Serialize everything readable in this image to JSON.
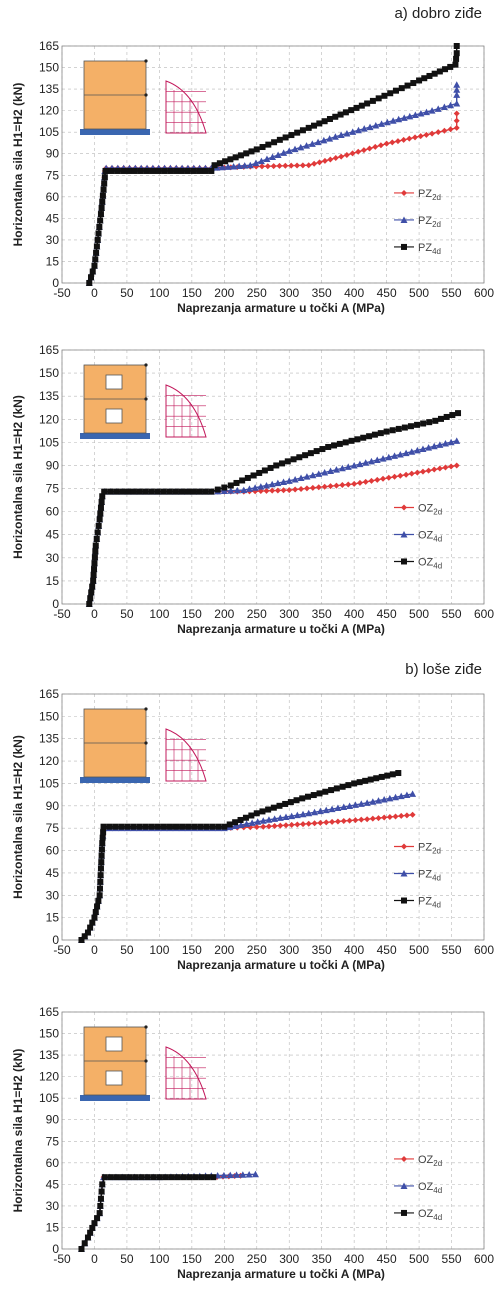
{
  "section_titles": [
    "a) dobro ziđe",
    "b) loše ziđe"
  ],
  "colors": {
    "red": "#e03a3a",
    "blue": "#3f4fa8",
    "black": "#111111",
    "grid": "#b8b8b8",
    "wall": "#f4b067",
    "base": "#3a66b0",
    "diagram": "#c2185b"
  },
  "chart_data": [
    {
      "type": "line",
      "title": "",
      "xlabel": "Naprezanja armature u točki A  (MPa)",
      "ylabel": "Horizontalna sila H1=H2 (kN)",
      "xlim": [
        -50,
        600
      ],
      "ylim": [
        0,
        165
      ],
      "xticks": [
        "-50",
        "0",
        "50",
        "100",
        "150",
        "200",
        "250",
        "300",
        "350",
        "400",
        "450",
        "500",
        "550",
        "600"
      ],
      "yticks": [
        "0",
        "15",
        "30",
        "45",
        "60",
        "75",
        "90",
        "105",
        "120",
        "135",
        "150",
        "165"
      ],
      "grid": true,
      "legend_position": "right",
      "inset": "wall",
      "legend_icon": "P",
      "series": [
        {
          "name": "PZ2d",
          "color": "red",
          "marker": "diamond",
          "points": [
            [
              -8,
              0
            ],
            [
              0,
              12
            ],
            [
              5,
              30
            ],
            [
              10,
              48
            ],
            [
              14,
              65
            ],
            [
              16,
              78
            ],
            [
              18,
              80
            ],
            [
              180,
              80
            ],
            [
              240,
              81
            ],
            [
              330,
              82
            ],
            [
              380,
              88
            ],
            [
              450,
              97
            ],
            [
              520,
              104
            ],
            [
              558,
              108
            ],
            [
              558,
              113
            ],
            [
              558,
              118
            ]
          ]
        },
        {
          "name": "PZ2d",
          "color": "blue",
          "marker": "triangle",
          "points": [
            [
              -8,
              0
            ],
            [
              0,
              12
            ],
            [
              5,
              30
            ],
            [
              10,
              48
            ],
            [
              14,
              65
            ],
            [
              16,
              78
            ],
            [
              18,
              80
            ],
            [
              180,
              80
            ],
            [
              240,
              82
            ],
            [
              300,
              92
            ],
            [
              380,
              103
            ],
            [
              460,
              113
            ],
            [
              520,
              120
            ],
            [
              558,
              125
            ],
            [
              558,
              131
            ],
            [
              558,
              138
            ]
          ]
        },
        {
          "name": "PZ4d",
          "color": "black",
          "marker": "square",
          "points": [
            [
              -8,
              0
            ],
            [
              0,
              12
            ],
            [
              5,
              30
            ],
            [
              10,
              48
            ],
            [
              14,
              65
            ],
            [
              17,
              78
            ],
            [
              180,
              78
            ],
            [
              185,
              82
            ],
            [
              250,
              93
            ],
            [
              330,
              108
            ],
            [
              420,
              125
            ],
            [
              500,
              141
            ],
            [
              556,
              152
            ],
            [
              558,
              160
            ],
            [
              558,
              165
            ]
          ]
        }
      ]
    },
    {
      "type": "line",
      "title": "",
      "xlabel": "Naprezanja armature  u točki A  (MPa)",
      "ylabel": "Horizontalna sila H1=H2 (kN)",
      "xlim": [
        -50,
        600
      ],
      "ylim": [
        0,
        165
      ],
      "xticks": [
        "-50",
        "0",
        "50",
        "100",
        "150",
        "200",
        "250",
        "300",
        "350",
        "400",
        "450",
        "500",
        "550",
        "600"
      ],
      "yticks": [
        "0",
        "15",
        "30",
        "45",
        "60",
        "75",
        "90",
        "105",
        "120",
        "135",
        "150",
        "165"
      ],
      "grid": true,
      "legend_position": "right",
      "inset": "window",
      "legend_icon": "O",
      "series": [
        {
          "name": "OZ2d",
          "color": "red",
          "marker": "diamond",
          "points": [
            [
              -8,
              0
            ],
            [
              -2,
              15
            ],
            [
              2,
              38
            ],
            [
              8,
              55
            ],
            [
              12,
              70
            ],
            [
              15,
              73
            ],
            [
              180,
              73
            ],
            [
              230,
              73
            ],
            [
              300,
              74
            ],
            [
              400,
              78
            ],
            [
              480,
              84
            ],
            [
              558,
              90
            ]
          ]
        },
        {
          "name": "OZ4d",
          "color": "blue",
          "marker": "triangle",
          "points": [
            [
              -8,
              0
            ],
            [
              -2,
              15
            ],
            [
              2,
              38
            ],
            [
              8,
              55
            ],
            [
              12,
              70
            ],
            [
              15,
              73
            ],
            [
              180,
              73
            ],
            [
              230,
              74
            ],
            [
              300,
              80
            ],
            [
              400,
              90
            ],
            [
              480,
              98
            ],
            [
              558,
              106
            ]
          ]
        },
        {
          "name": "OZ4d",
          "color": "black",
          "marker": "square",
          "points": [
            [
              -8,
              0
            ],
            [
              -2,
              15
            ],
            [
              2,
              38
            ],
            [
              8,
              55
            ],
            [
              12,
              70
            ],
            [
              15,
              73
            ],
            [
              180,
              73
            ],
            [
              210,
              77
            ],
            [
              280,
              90
            ],
            [
              360,
              102
            ],
            [
              450,
              112
            ],
            [
              525,
              119
            ],
            [
              560,
              124
            ]
          ]
        }
      ]
    },
    {
      "type": "line",
      "title": "",
      "xlabel": "Naprezanja armature u točki A  (MPa)",
      "ylabel": "Horizontalna sila H1=H2 (kN)",
      "xlim": [
        -50,
        600
      ],
      "ylim": [
        0,
        165
      ],
      "xticks": [
        "-50",
        "0",
        "50",
        "100",
        "150",
        "200",
        "250",
        "300",
        "350",
        "400",
        "450",
        "500",
        "550",
        "600"
      ],
      "yticks": [
        "0",
        "15",
        "30",
        "45",
        "60",
        "75",
        "90",
        "105",
        "120",
        "135",
        "150",
        "165"
      ],
      "grid": true,
      "legend_position": "right",
      "inset": "wall",
      "legend_icon": "P",
      "series": [
        {
          "name": "PZ2d",
          "color": "red",
          "marker": "diamond",
          "points": [
            [
              -20,
              0
            ],
            [
              -10,
              5
            ],
            [
              0,
              15
            ],
            [
              8,
              30
            ],
            [
              10,
              48
            ],
            [
              12,
              65
            ],
            [
              14,
              75
            ],
            [
              200,
              75
            ],
            [
              260,
              76
            ],
            [
              330,
              78
            ],
            [
              420,
              81
            ],
            [
              490,
              84
            ]
          ]
        },
        {
          "name": "PZ4d",
          "color": "blue",
          "marker": "triangle",
          "points": [
            [
              -20,
              0
            ],
            [
              -10,
              5
            ],
            [
              0,
              15
            ],
            [
              8,
              30
            ],
            [
              10,
              48
            ],
            [
              12,
              65
            ],
            [
              14,
              75
            ],
            [
              200,
              75
            ],
            [
              260,
              80
            ],
            [
              330,
              85
            ],
            [
              420,
              92
            ],
            [
              490,
              98
            ]
          ]
        },
        {
          "name": "PZ4d",
          "color": "black",
          "marker": "square",
          "points": [
            [
              -20,
              0
            ],
            [
              -10,
              5
            ],
            [
              0,
              15
            ],
            [
              8,
              30
            ],
            [
              10,
              48
            ],
            [
              12,
              65
            ],
            [
              14,
              76
            ],
            [
              200,
              76
            ],
            [
              250,
              85
            ],
            [
              320,
              95
            ],
            [
              400,
              105
            ],
            [
              468,
              112
            ]
          ]
        }
      ]
    },
    {
      "type": "line",
      "title": "",
      "xlabel": "Naprezanja armature u točki A  (MPa)",
      "ylabel": "Horizontalna sila H1=H2 (kN)",
      "xlim": [
        -50,
        600
      ],
      "ylim": [
        0,
        165
      ],
      "xticks": [
        "-50",
        "0",
        "50",
        "100",
        "150",
        "200",
        "250",
        "300",
        "350",
        "400",
        "450",
        "500",
        "550",
        "600"
      ],
      "yticks": [
        "0",
        "15",
        "30",
        "45",
        "60",
        "75",
        "90",
        "105",
        "120",
        "135",
        "150",
        "165"
      ],
      "grid": true,
      "legend_position": "right",
      "inset": "window",
      "legend_icon": "O",
      "series": [
        {
          "name": "OZ2d",
          "color": "red",
          "marker": "diamond",
          "points": [
            [
              -20,
              0
            ],
            [
              -10,
              8
            ],
            [
              0,
              18
            ],
            [
              8,
              25
            ],
            [
              10,
              35
            ],
            [
              12,
              45
            ],
            [
              14,
              50
            ],
            [
              100,
              50
            ],
            [
              180,
              50
            ],
            [
              225,
              51
            ]
          ]
        },
        {
          "name": "OZ4d",
          "color": "blue",
          "marker": "triangle",
          "points": [
            [
              -20,
              0
            ],
            [
              -10,
              8
            ],
            [
              0,
              18
            ],
            [
              8,
              25
            ],
            [
              10,
              35
            ],
            [
              12,
              45
            ],
            [
              14,
              50
            ],
            [
              100,
              50
            ],
            [
              180,
              51
            ],
            [
              248,
              52
            ]
          ]
        },
        {
          "name": "OZ4d",
          "color": "black",
          "marker": "square",
          "points": [
            [
              -20,
              0
            ],
            [
              -10,
              8
            ],
            [
              0,
              18
            ],
            [
              8,
              25
            ],
            [
              10,
              35
            ],
            [
              12,
              45
            ],
            [
              16,
              50
            ],
            [
              100,
              50
            ],
            [
              183,
              50
            ]
          ]
        }
      ]
    }
  ]
}
